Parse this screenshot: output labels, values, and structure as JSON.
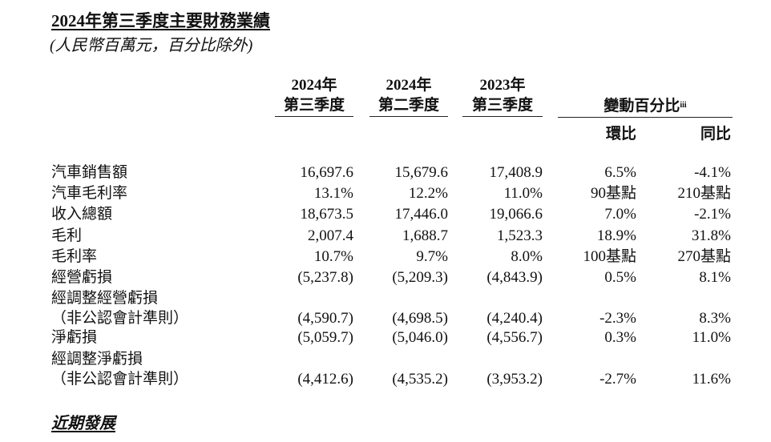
{
  "title": "2024年第三季度主要財務業績",
  "subtitle": "(人民幣百萬元，百分比除外)",
  "columns": {
    "c1": {
      "line1": "2024年",
      "line2": "第三季度"
    },
    "c2": {
      "line1": "2024年",
      "line2": "第二季度"
    },
    "c3": {
      "line1": "2023年",
      "line2": "第三季度"
    },
    "change": {
      "label": "變動百分比",
      "sup": "iii",
      "qoq": "環比",
      "yoy": "同比"
    }
  },
  "rows": [
    {
      "label": "汽車銷售額",
      "label2": "",
      "c1": "16,697.6",
      "c2": "15,679.6",
      "c3": "17,408.9",
      "qoq": "6.5%",
      "yoy": "-4.1%"
    },
    {
      "label": "汽車毛利率",
      "label2": "",
      "c1": "13.1%",
      "c2": "12.2%",
      "c3": "11.0%",
      "qoq": "90基點",
      "yoy": "210基點"
    },
    {
      "label": "收入總額",
      "label2": "",
      "c1": "18,673.5",
      "c2": "17,446.0",
      "c3": "19,066.6",
      "qoq": "7.0%",
      "yoy": "-2.1%"
    },
    {
      "label": "毛利",
      "label2": "",
      "c1": "2,007.4",
      "c2": "1,688.7",
      "c3": "1,523.3",
      "qoq": "18.9%",
      "yoy": "31.8%"
    },
    {
      "label": "毛利率",
      "label2": "",
      "c1": "10.7%",
      "c2": "9.7%",
      "c3": "8.0%",
      "qoq": "100基點",
      "yoy": "270基點"
    },
    {
      "label": "經營虧損",
      "label2": "",
      "c1": "(5,237.8)",
      "c2": "(5,209.3)",
      "c3": "(4,843.9)",
      "qoq": "0.5%",
      "yoy": "8.1%"
    },
    {
      "label": "經調整經營虧損",
      "label2": "（非公認會計準則）",
      "c1": "(4,590.7)",
      "c2": "(4,698.5)",
      "c3": "(4,240.4)",
      "qoq": "-2.3%",
      "yoy": "8.3%"
    },
    {
      "label": "淨虧損",
      "label2": "",
      "c1": "(5,059.7)",
      "c2": "(5,046.0)",
      "c3": "(4,556.7)",
      "qoq": "0.3%",
      "yoy": "11.0%"
    },
    {
      "label": "經調整淨虧損",
      "label2": "（非公認會計準則）",
      "c1": "(4,412.6)",
      "c2": "(4,535.2)",
      "c3": "(3,953.2)",
      "qoq": "-2.7%",
      "yoy": "11.6%"
    }
  ],
  "footer": "近期發展"
}
